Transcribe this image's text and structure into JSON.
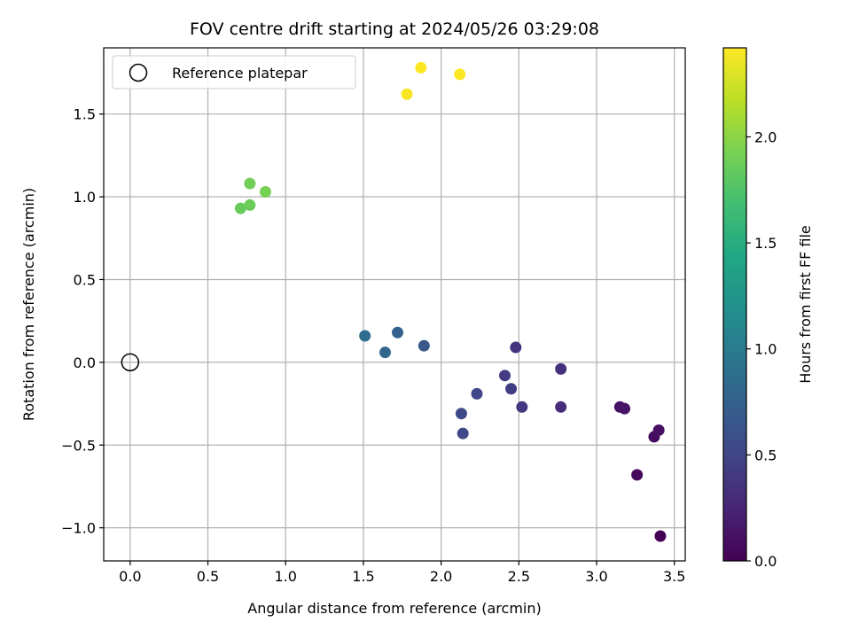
{
  "chart_data": {
    "type": "scatter",
    "title": "FOV centre drift starting at 2024/05/26 03:29:08",
    "xlabel": "Angular distance from reference (arcmin)",
    "ylabel": "Rotation from reference (arcmin)",
    "xlim": [
      -0.17,
      3.57
    ],
    "ylim": [
      -1.2,
      1.9
    ],
    "xticks": [
      0.0,
      0.5,
      1.0,
      1.5,
      2.0,
      2.5,
      3.0,
      3.5
    ],
    "xtick_labels": [
      "0.0",
      "0.5",
      "1.0",
      "1.5",
      "2.0",
      "2.5",
      "3.0",
      "3.5"
    ],
    "yticks": [
      -1.0,
      -0.5,
      0.0,
      0.5,
      1.0,
      1.5
    ],
    "ytick_labels": [
      "−1.0",
      "−0.5",
      "0.0",
      "0.5",
      "1.0",
      "1.5"
    ],
    "grid": true,
    "legend": {
      "placement": "top-left",
      "entries": [
        "Reference platepar"
      ]
    },
    "reference_point": {
      "x": 0.0,
      "y": 0.0,
      "label": "Reference platepar"
    },
    "colorbar": {
      "label": "Hours from first FF file",
      "colormap": "viridis",
      "range": [
        0.0,
        2.42
      ],
      "ticks": [
        0.0,
        0.5,
        1.0,
        1.5,
        2.0
      ],
      "tick_labels": [
        "0.0",
        "0.5",
        "1.0",
        "1.5",
        "2.0"
      ]
    },
    "points": [
      {
        "x": 3.41,
        "y": -1.05,
        "t": 0.0
      },
      {
        "x": 3.26,
        "y": -0.68,
        "t": 0.05
      },
      {
        "x": 3.37,
        "y": -0.45,
        "t": 0.08
      },
      {
        "x": 3.4,
        "y": -0.41,
        "t": 0.1
      },
      {
        "x": 3.15,
        "y": -0.27,
        "t": 0.12
      },
      {
        "x": 3.18,
        "y": -0.28,
        "t": 0.14
      },
      {
        "x": 2.77,
        "y": -0.27,
        "t": 0.3
      },
      {
        "x": 2.77,
        "y": -0.04,
        "t": 0.33
      },
      {
        "x": 2.52,
        "y": -0.27,
        "t": 0.38
      },
      {
        "x": 2.48,
        "y": 0.09,
        "t": 0.36
      },
      {
        "x": 2.41,
        "y": -0.08,
        "t": 0.42
      },
      {
        "x": 2.45,
        "y": -0.16,
        "t": 0.44
      },
      {
        "x": 2.23,
        "y": -0.19,
        "t": 0.5
      },
      {
        "x": 2.13,
        "y": -0.31,
        "t": 0.54
      },
      {
        "x": 2.14,
        "y": -0.43,
        "t": 0.52
      },
      {
        "x": 1.89,
        "y": 0.1,
        "t": 0.65
      },
      {
        "x": 1.72,
        "y": 0.18,
        "t": 0.75
      },
      {
        "x": 1.64,
        "y": 0.06,
        "t": 0.8
      },
      {
        "x": 1.51,
        "y": 0.16,
        "t": 0.85
      },
      {
        "x": 0.71,
        "y": 0.93,
        "t": 1.85
      },
      {
        "x": 0.77,
        "y": 0.95,
        "t": 1.87
      },
      {
        "x": 0.77,
        "y": 1.08,
        "t": 1.9
      },
      {
        "x": 0.87,
        "y": 1.03,
        "t": 1.92
      },
      {
        "x": 1.78,
        "y": 1.62,
        "t": 2.4
      },
      {
        "x": 1.87,
        "y": 1.78,
        "t": 2.42
      },
      {
        "x": 2.12,
        "y": 1.74,
        "t": 2.42
      }
    ]
  }
}
